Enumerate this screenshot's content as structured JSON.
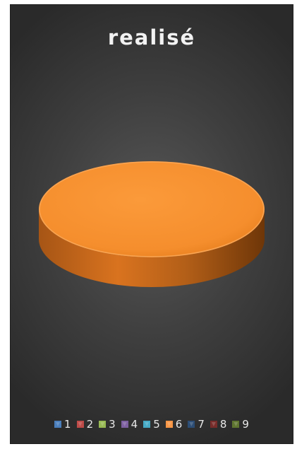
{
  "chart_data": {
    "type": "pie",
    "title": "realisé",
    "categories": [
      "1",
      "2",
      "3",
      "4",
      "5",
      "6",
      "7",
      "8",
      "9"
    ],
    "values": [
      0,
      0,
      0,
      0,
      0,
      100,
      0,
      0,
      0
    ],
    "colors": [
      "#4a7ebb",
      "#be4b48",
      "#98b954",
      "#7d60a0",
      "#46aac5",
      "#f79646",
      "#2c4d75",
      "#772c2a",
      "#5f7530"
    ],
    "legend_position": "bottom",
    "style": "3d"
  }
}
